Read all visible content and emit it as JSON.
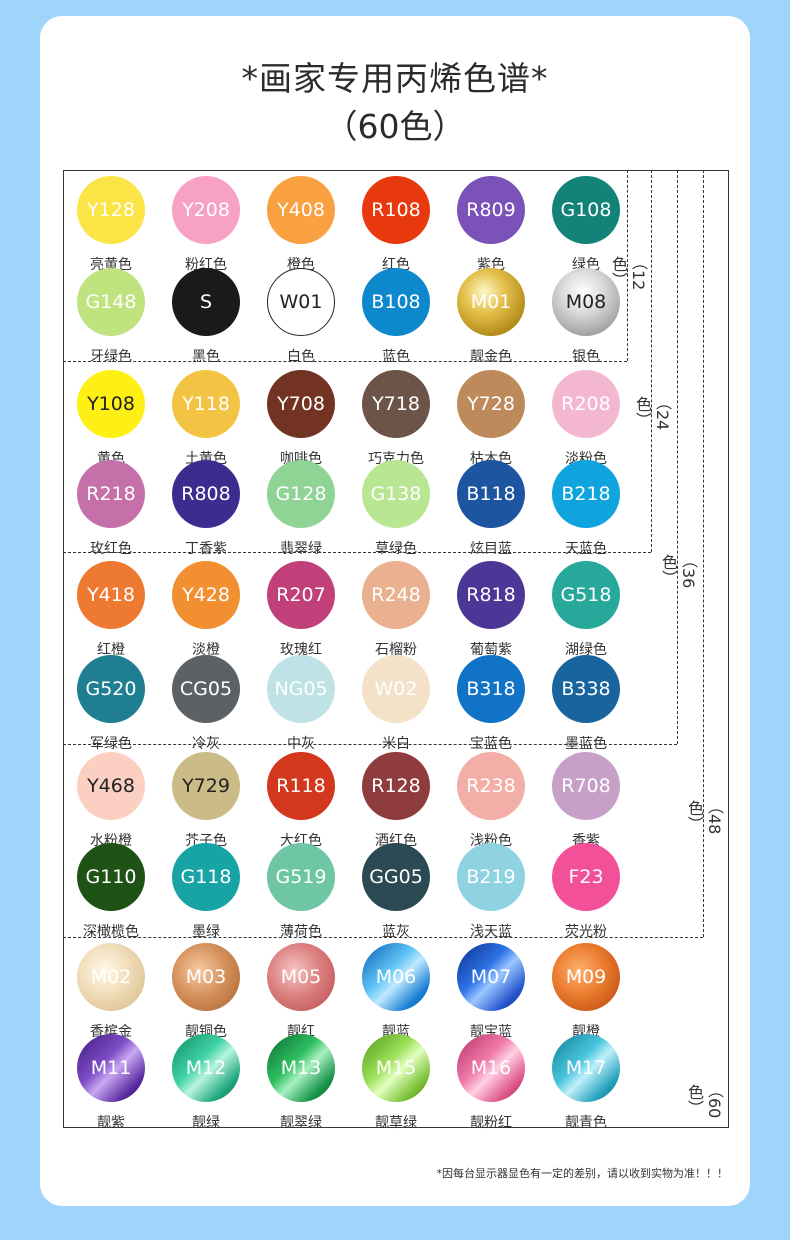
{
  "title": "*画家专用丙烯色谱*",
  "subtitle": "（60色）",
  "note": "*因每台显示器显色有一定的差别，请以收到实物为准！！！",
  "group_labels": [
    "（12色）",
    "（24色）",
    "（36色）",
    "（48色）",
    "（60色）"
  ],
  "colors": [
    {
      "code": "Y128",
      "name": "亮黄色",
      "fill": "#fbe446",
      "text": "#ffffff"
    },
    {
      "code": "Y208",
      "name": "粉红色",
      "fill": "#f7a1c4",
      "text": "#ffffff"
    },
    {
      "code": "Y408",
      "name": "橙色",
      "fill": "#f9a040",
      "text": "#ffffff"
    },
    {
      "code": "R108",
      "name": "红色",
      "fill": "#e8380d",
      "text": "#ffffff"
    },
    {
      "code": "R809",
      "name": "紫色",
      "fill": "#7a52b8",
      "text": "#ffffff"
    },
    {
      "code": "G108",
      "name": "绿色",
      "fill": "#138379",
      "text": "#ffffff"
    },
    {
      "code": "G148",
      "name": "牙绿色",
      "fill": "#bfe37f",
      "text": "#ffffff"
    },
    {
      "code": "S",
      "name": "黑色",
      "fill": "#1a1a1a",
      "text": "#ffffff"
    },
    {
      "code": "W01",
      "name": "白色",
      "fill": "#ffffff",
      "text": "#222222",
      "border": "#222222"
    },
    {
      "code": "B108",
      "name": "蓝色",
      "fill": "#0e88cc",
      "text": "#ffffff"
    },
    {
      "code": "M01",
      "name": "靓金色",
      "fill": "#c9a229",
      "text": "#ffffff",
      "grad": "radial-gradient(circle at 40% 35%, #fff6c8 0%, #e3c04a 35%, #b28a1a 75%, #8d6a10 100%)"
    },
    {
      "code": "M08",
      "name": "银色",
      "fill": "#bfbfbf",
      "text": "#222222",
      "grad": "radial-gradient(circle at 45% 35%, #ffffff 0%, #dcdcdc 35%, #9c9c9c 80%, #8a8a8a 100%)"
    },
    {
      "code": "Y108",
      "name": "黄色",
      "fill": "#fef015",
      "text": "#222222"
    },
    {
      "code": "Y118",
      "name": "土黄色",
      "fill": "#f3c444",
      "text": "#ffffff"
    },
    {
      "code": "Y708",
      "name": "咖啡色",
      "fill": "#733322",
      "text": "#ffffff"
    },
    {
      "code": "Y718",
      "name": "巧克力色",
      "fill": "#6d5449",
      "text": "#ffffff"
    },
    {
      "code": "Y728",
      "name": "枯木色",
      "fill": "#be8a5c",
      "text": "#ffffff"
    },
    {
      "code": "R208",
      "name": "淡粉色",
      "fill": "#f3b8d0",
      "text": "#ffffff"
    },
    {
      "code": "R218",
      "name": "玫红色",
      "fill": "#c570a8",
      "text": "#ffffff"
    },
    {
      "code": "R808",
      "name": "丁香紫",
      "fill": "#3d2c8f",
      "text": "#ffffff"
    },
    {
      "code": "G128",
      "name": "翡翠绿",
      "fill": "#8fd395",
      "text": "#ffffff"
    },
    {
      "code": "G138",
      "name": "草绿色",
      "fill": "#b8e692",
      "text": "#ffffff"
    },
    {
      "code": "B118",
      "name": "炫目蓝",
      "fill": "#1d55a0",
      "text": "#ffffff"
    },
    {
      "code": "B218",
      "name": "天蓝色",
      "fill": "#10a4df",
      "text": "#ffffff"
    },
    {
      "code": "Y418",
      "name": "红橙",
      "fill": "#ee7a32",
      "text": "#ffffff"
    },
    {
      "code": "Y428",
      "name": "淡橙",
      "fill": "#f28f30",
      "text": "#ffffff"
    },
    {
      "code": "R207",
      "name": "玫瑰红",
      "fill": "#c2407a",
      "text": "#ffffff"
    },
    {
      "code": "R248",
      "name": "石榴粉",
      "fill": "#eab190",
      "text": "#ffffff"
    },
    {
      "code": "R818",
      "name": "葡萄紫",
      "fill": "#4c3796",
      "text": "#ffffff"
    },
    {
      "code": "G518",
      "name": "湖绿色",
      "fill": "#27a89a",
      "text": "#ffffff"
    },
    {
      "code": "G520",
      "name": "军绿色",
      "fill": "#1f7e92",
      "text": "#ffffff"
    },
    {
      "code": "CG05",
      "name": "冷灰",
      "fill": "#5b6164",
      "text": "#ffffff"
    },
    {
      "code": "NG05",
      "name": "中灰",
      "fill": "#bfe2e6",
      "text": "#ffffff"
    },
    {
      "code": "W02",
      "name": "米白",
      "fill": "#f3e1c8",
      "text": "#ffffff"
    },
    {
      "code": "B318",
      "name": "宝蓝色",
      "fill": "#1173c6",
      "text": "#ffffff"
    },
    {
      "code": "B338",
      "name": "墨蓝色",
      "fill": "#18659d",
      "text": "#ffffff"
    },
    {
      "code": "Y468",
      "name": "水粉橙",
      "fill": "#fbd0c3",
      "text": "#222222"
    },
    {
      "code": "Y729",
      "name": "芥子色",
      "fill": "#cbbb86",
      "text": "#222222"
    },
    {
      "code": "R118",
      "name": "大红色",
      "fill": "#d3371d",
      "text": "#ffffff"
    },
    {
      "code": "R128",
      "name": "酒红色",
      "fill": "#8e3c3e",
      "text": "#ffffff"
    },
    {
      "code": "R238",
      "name": "浅粉色",
      "fill": "#f3afa7",
      "text": "#ffffff"
    },
    {
      "code": "R708",
      "name": "香紫",
      "fill": "#c7a0c8",
      "text": "#ffffff"
    },
    {
      "code": "G110",
      "name": "深橄榄色",
      "fill": "#1f5316",
      "text": "#ffffff"
    },
    {
      "code": "G118",
      "name": "墨绿",
      "fill": "#18a4a4",
      "text": "#ffffff"
    },
    {
      "code": "G519",
      "name": "薄荷色",
      "fill": "#6ec6a5",
      "text": "#ffffff"
    },
    {
      "code": "GG05",
      "name": "蓝灰",
      "fill": "#2c4a53",
      "text": "#ffffff"
    },
    {
      "code": "B219",
      "name": "浅天蓝",
      "fill": "#8fd2e2",
      "text": "#ffffff"
    },
    {
      "code": "F23",
      "name": "荧光粉",
      "fill": "#f3509a",
      "text": "#ffffff"
    },
    {
      "code": "M02",
      "name": "香槟金",
      "fill": "#efdcb9",
      "text": "#ffffff",
      "grad": "radial-gradient(circle at 40% 40%, #fff8e8 0%, #f2dfbd 40%, #d9bc8b 90%)"
    },
    {
      "code": "M03",
      "name": "靓铜色",
      "fill": "#cf8a56",
      "text": "#ffffff",
      "grad": "radial-gradient(circle at 40% 40%, #f7caa0 0%, #d5915c 45%, #a8602e 100%)"
    },
    {
      "code": "M05",
      "name": "靓红",
      "fill": "#d87c7c",
      "text": "#ffffff",
      "grad": "radial-gradient(circle at 40% 40%, #f7c3c3 0%, #dc8080 45%, #b9474d 100%)"
    },
    {
      "code": "M06",
      "name": "靓蓝",
      "fill": "#2a8ee0",
      "text": "#ffffff",
      "grad": "linear-gradient(135deg, #0a5db7 0%, #5fc3f5 40%, #bfe9ff 55%, #1b7fd5 80%, #0a4e9f 100%)"
    },
    {
      "code": "M07",
      "name": "靓宝蓝",
      "fill": "#1c4fc4",
      "text": "#ffffff",
      "grad": "linear-gradient(135deg, #0a2f8f 0%, #2d72e6 40%, #9cc6ff 55%, #2556cc 80%, #0a2a7a 100%)"
    },
    {
      "code": "M09",
      "name": "靓橙",
      "fill": "#e06d24",
      "text": "#ffffff",
      "grad": "radial-gradient(circle at 40% 40%, #ffb070 0%, #ea7a2c 45%, #b3420e 100%)"
    },
    {
      "code": "M11",
      "name": "靓紫",
      "fill": "#5b2c9c",
      "text": "#ffffff",
      "grad": "linear-gradient(135deg, #3e1a7a 0%, #7d4cc6 40%, #c8a8f2 55%, #5a2ca0 80%, #32145f 100%)"
    },
    {
      "code": "M12",
      "name": "靓绿",
      "fill": "#26b68a",
      "text": "#ffffff",
      "grad": "linear-gradient(135deg, #0c8a63 0%, #3fd2a4 40%, #b8f5df 55%, #1ea57c 80%, #0a6e50 100%)"
    },
    {
      "code": "M13",
      "name": "靓翠绿",
      "fill": "#1c9c4c",
      "text": "#ffffff",
      "grad": "linear-gradient(135deg, #0a6a30 0%, #2fbf62 40%, #a8f0c0 55%, #17934a 80%, #08572a 100%)"
    },
    {
      "code": "M15",
      "name": "靓草绿",
      "fill": "#7cc23a",
      "text": "#ffffff",
      "grad": "linear-gradient(135deg, #4e9a1a 0%, #9ee05a 40%, #e2ffc0 55%, #79c034 80%, #3f8010 100%)"
    },
    {
      "code": "M16",
      "name": "靓粉红",
      "fill": "#e05a8c",
      "text": "#ffffff",
      "grad": "linear-gradient(135deg, #b8326a 0%, #f07aa8 40%, #ffd0e2 55%, #dc5488 80%, #a02a5c 100%)"
    },
    {
      "code": "M17",
      "name": "靓青色",
      "fill": "#2aa6c2",
      "text": "#ffffff",
      "grad": "linear-gradient(135deg, #0f7c96 0%, #48c4dc 40%, #c0f0fa 55%, #24a0bc 80%, #0a6a80 100%)"
    }
  ]
}
